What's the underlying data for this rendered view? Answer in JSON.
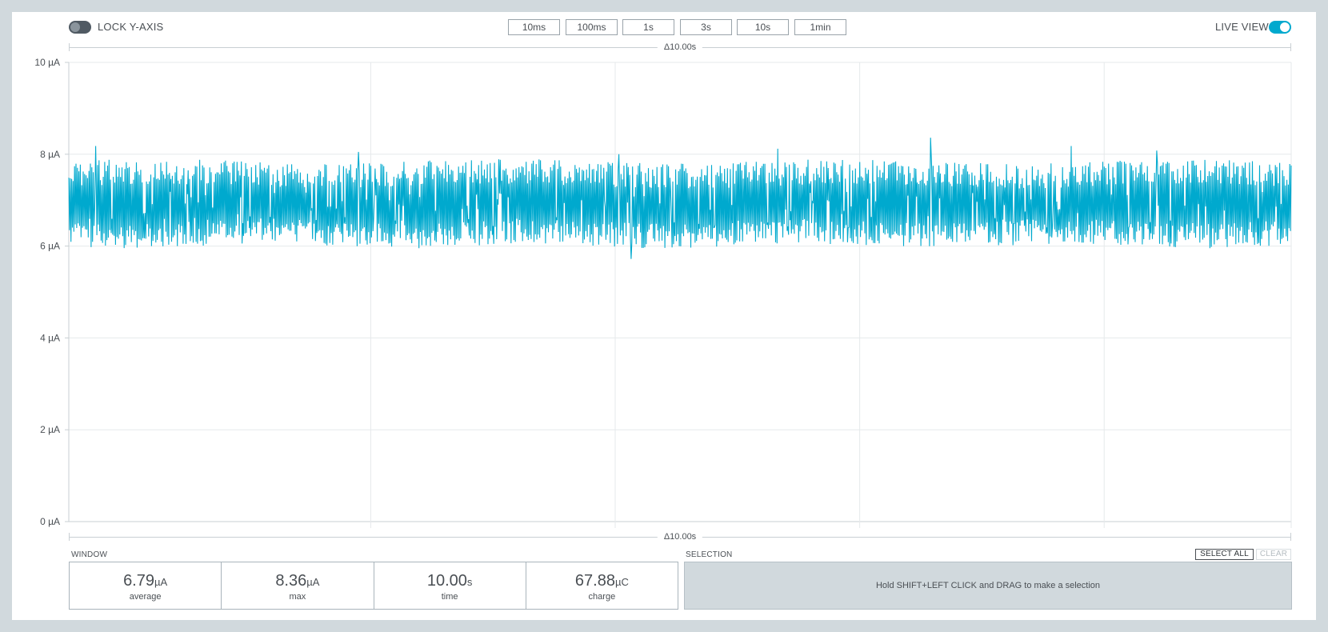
{
  "topbar": {
    "lock_label": "LOCK Y-AXIS",
    "lock_on": false,
    "live_label": "LIVE VIEW",
    "live_on": true,
    "window_buttons": [
      "10ms",
      "100ms",
      "1s",
      "3s",
      "10s",
      "1min"
    ]
  },
  "range": {
    "top_label": "Δ10.00s",
    "bottom_label": "Δ10.00s"
  },
  "chart_data": {
    "type": "line",
    "xlabel": "",
    "ylabel": "",
    "y_unit": "µA",
    "ylim": [
      0,
      10
    ],
    "yticks": [
      {
        "value": 10,
        "label": "10 µA"
      },
      {
        "value": 8,
        "label": "8 µA"
      },
      {
        "value": 6,
        "label": "6 µA"
      },
      {
        "value": 4,
        "label": "4 µA"
      },
      {
        "value": 2,
        "label": "2 µA"
      },
      {
        "value": 0,
        "label": "0 µA"
      }
    ],
    "x_range_s": [
      0,
      10
    ],
    "vertical_gridlines_s": [
      2.47,
      4.47,
      6.47,
      8.47
    ],
    "grid": true,
    "series": [
      {
        "color": "#00a9ce",
        "baseline": 6.79,
        "band": [
          5.95,
          7.85
        ],
        "peaks": [
          {
            "t": 0.22,
            "v": 8.18
          },
          {
            "t": 2.37,
            "v": 8.05
          },
          {
            "t": 4.5,
            "v": 8.0
          },
          {
            "t": 5.8,
            "v": 8.12
          },
          {
            "t": 7.05,
            "v": 8.36
          },
          {
            "t": 8.2,
            "v": 8.18
          },
          {
            "t": 8.9,
            "v": 8.08
          }
        ],
        "min": 5.72
      }
    ]
  },
  "window_stats": {
    "label": "WINDOW",
    "items": [
      {
        "value": "6.79",
        "unit": "µA",
        "caption": "average"
      },
      {
        "value": "8.36",
        "unit": "µA",
        "caption": "max"
      },
      {
        "value": "10.00",
        "unit": "s",
        "caption": "time"
      },
      {
        "value": "67.88",
        "unit": "µC",
        "caption": "charge"
      }
    ]
  },
  "selection": {
    "label": "SELECTION",
    "select_all": "SELECT ALL",
    "clear": "CLEAR",
    "hint": "Hold SHIFT+LEFT CLICK and DRAG to make a selection"
  }
}
